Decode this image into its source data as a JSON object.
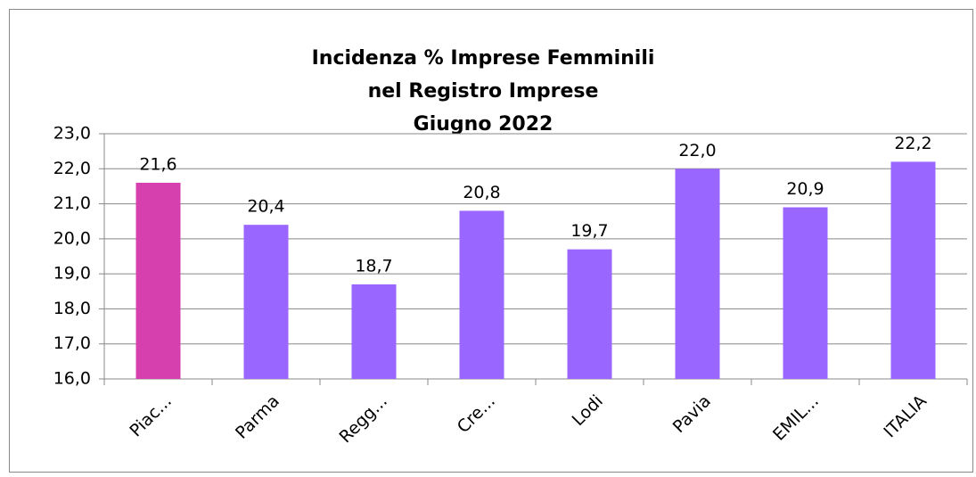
{
  "chart_data": {
    "type": "bar",
    "title": [
      "Incidenza %  Imprese Femminili",
      "nel Registro Imprese",
      "Giugno  2022"
    ],
    "categories": [
      "Piac...",
      "Parma",
      "Regg...",
      "Cre...",
      "Lodi",
      "Pavia",
      "EMIL...",
      "ITALIA"
    ],
    "values": [
      21.6,
      20.4,
      18.7,
      20.8,
      19.7,
      22.0,
      20.9,
      22.2
    ],
    "value_labels": [
      "21,6",
      "20,4",
      "18,7",
      "20,8",
      "19,7",
      "22,0",
      "20,9",
      "22,2"
    ],
    "colors": [
      "#d63fae",
      "#9966ff",
      "#9966ff",
      "#9966ff",
      "#9966ff",
      "#9966ff",
      "#9966ff",
      "#9966ff"
    ],
    "ylim": [
      16,
      23
    ],
    "yticks": [
      {
        "value": 16,
        "label": "16,0"
      },
      {
        "value": 17,
        "label": "17,0"
      },
      {
        "value": 18,
        "label": "18,0"
      },
      {
        "value": 19,
        "label": "19,0"
      },
      {
        "value": 20,
        "label": "20,0"
      },
      {
        "value": 21,
        "label": "21,0"
      },
      {
        "value": 22,
        "label": "22,0"
      },
      {
        "value": 23,
        "label": "23,0"
      }
    ],
    "grid": true
  }
}
